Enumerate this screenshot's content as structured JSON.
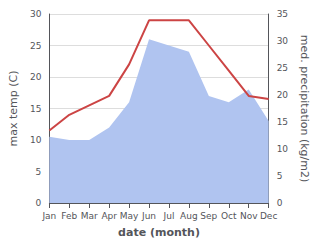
{
  "chart_data": {
    "type": "line",
    "categories": [
      "Jan",
      "Feb",
      "Mar",
      "Apr",
      "May",
      "Jun",
      "Jul",
      "Aug",
      "Sep",
      "Oct",
      "Nov",
      "Dec"
    ],
    "series": [
      {
        "type": "area",
        "color": "#b0c4f0",
        "values": [
          10.5,
          10.0,
          10.0,
          12.0,
          16.0,
          26.0,
          25.0,
          24.0,
          17.0,
          16.0,
          18.0,
          13.0
        ]
      },
      {
        "type": "line",
        "color": "#cc4444",
        "values": [
          11.5,
          14.0,
          15.5,
          17.0,
          22.0,
          29.0,
          29.0,
          29.0,
          25.0,
          21.0,
          17.0,
          16.5
        ]
      }
    ],
    "xlabel": "date (month)",
    "ylabel": "max temp (C)",
    "y2label": "med. precipitation (kg/m2)",
    "ylim": [
      0,
      30
    ],
    "yticks": [
      0,
      5,
      10,
      15,
      20,
      25,
      30
    ],
    "y2lim": [
      0,
      35
    ],
    "y2ticks": [
      0,
      5,
      10,
      15,
      20,
      25,
      30,
      35
    ],
    "grid": true
  }
}
